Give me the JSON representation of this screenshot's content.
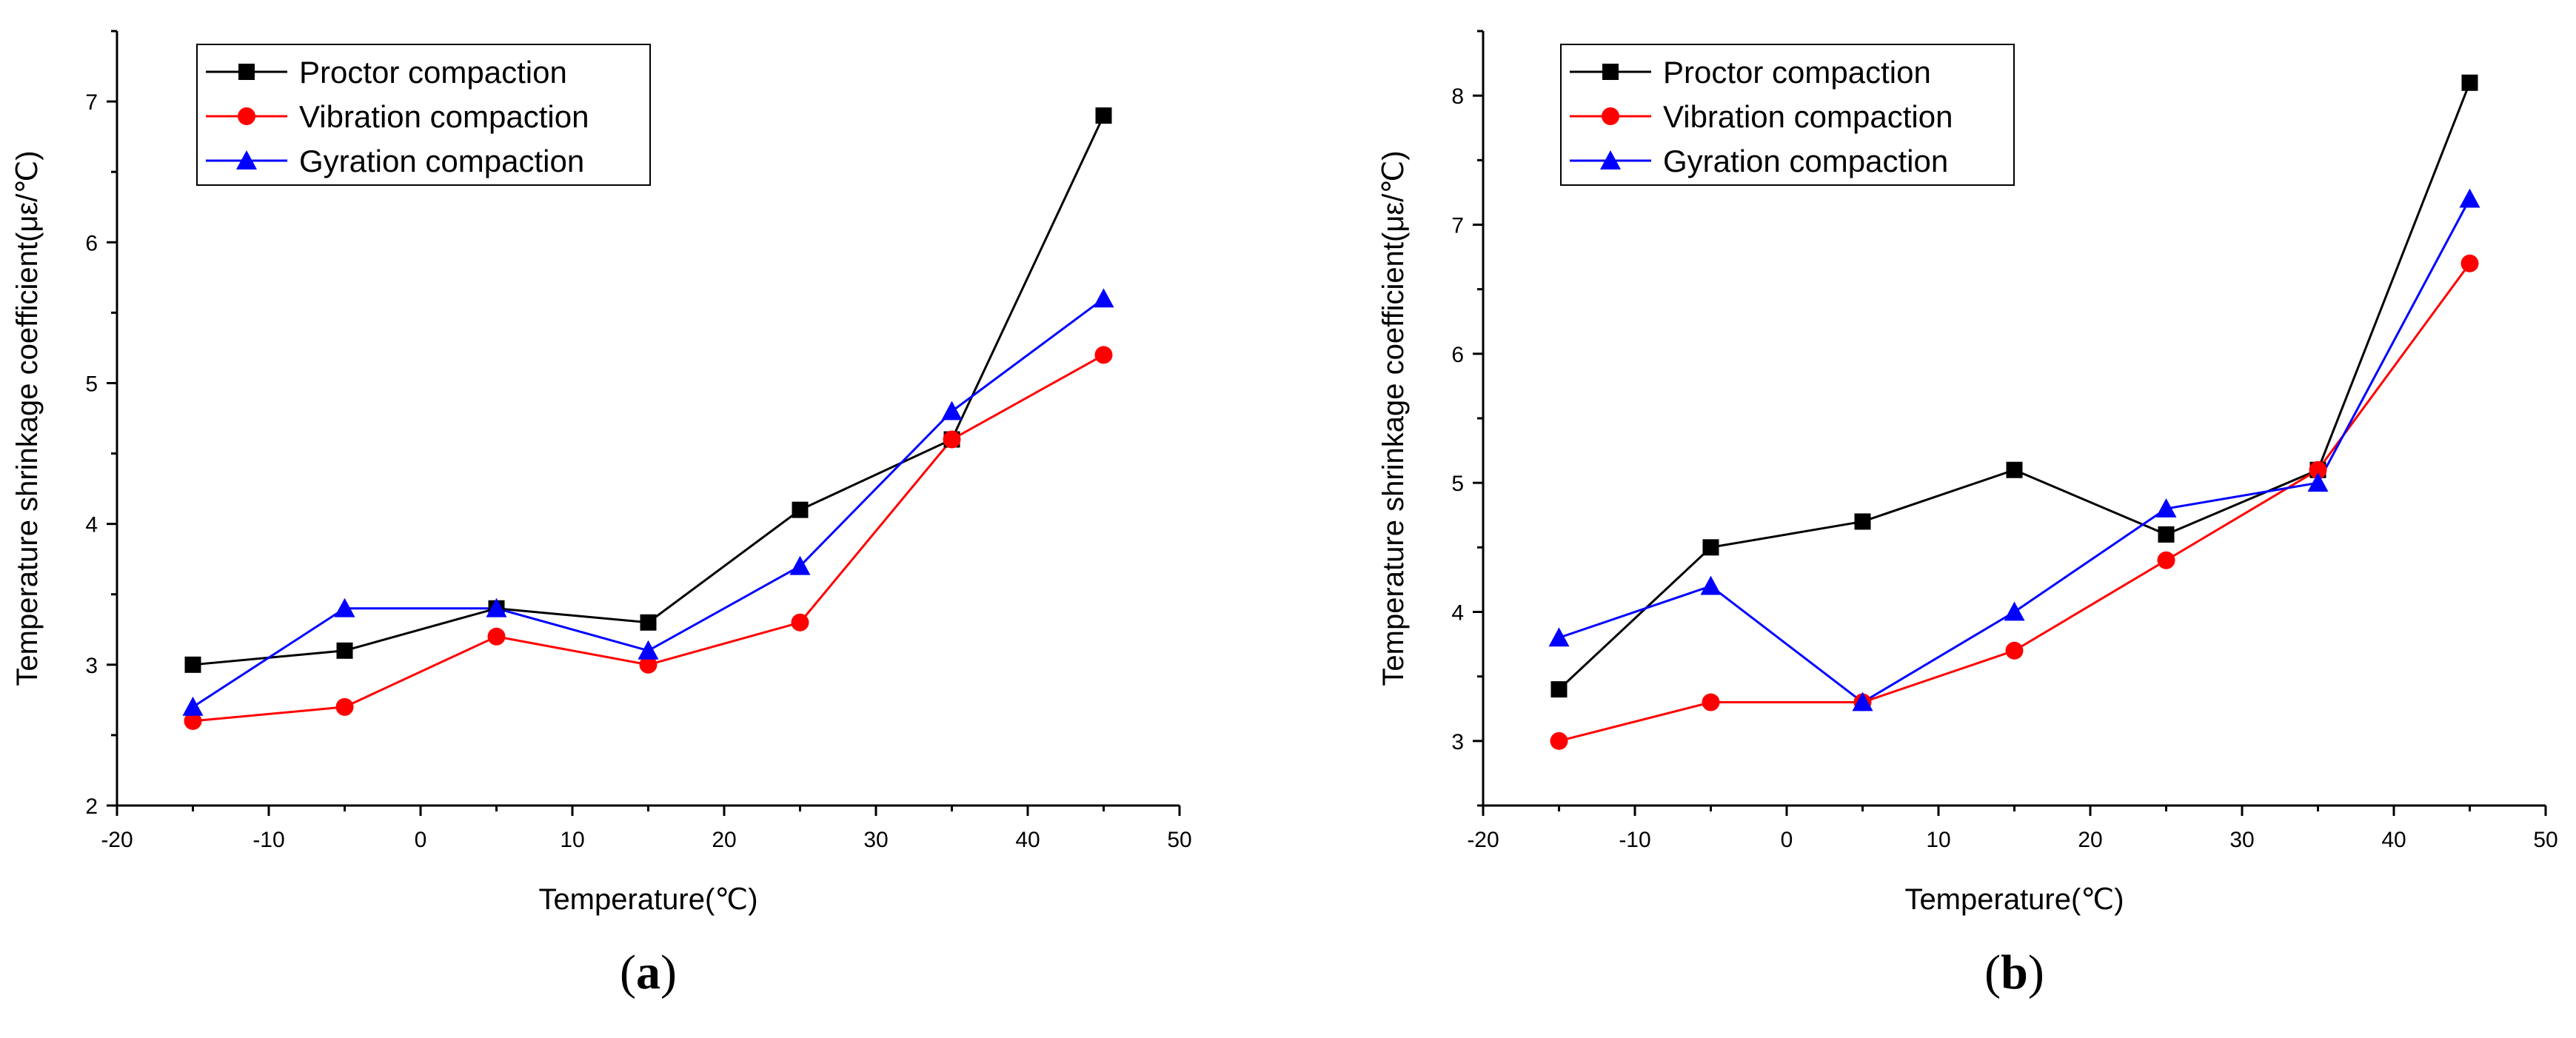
{
  "chart_data": [
    {
      "type": "line",
      "panel_label": "a",
      "xlabel": "Temperature(℃)",
      "ylabel": "Temperature shrinkage coefficient(με/℃)",
      "xlim": [
        -20,
        50
      ],
      "ylim": [
        2,
        7.5
      ],
      "xticks": [
        -20,
        -10,
        0,
        10,
        20,
        30,
        40,
        50
      ],
      "yticks": [
        2,
        3,
        4,
        5,
        6,
        7
      ],
      "legend_position": "top-left",
      "x": [
        -15,
        -5,
        5,
        15,
        25,
        35,
        45
      ],
      "series": [
        {
          "name": "Proctor compaction",
          "color": "#000000",
          "marker": "square",
          "values": [
            3.0,
            3.1,
            3.4,
            3.3,
            4.1,
            4.6,
            6.9
          ]
        },
        {
          "name": "Vibration compaction",
          "color": "#ff0000",
          "marker": "circle",
          "values": [
            2.6,
            2.7,
            3.2,
            3.0,
            3.3,
            4.6,
            5.2
          ]
        },
        {
          "name": "Gyration compaction",
          "color": "#0000ff",
          "marker": "triangle",
          "values": [
            2.7,
            3.4,
            3.4,
            3.1,
            3.7,
            4.8,
            5.6
          ]
        }
      ]
    },
    {
      "type": "line",
      "panel_label": "b",
      "xlabel": "Temperature(℃)",
      "ylabel": "Temperature shrinkage coefficient(με/℃)",
      "xlim": [
        -20,
        50
      ],
      "ylim": [
        2.5,
        8.5
      ],
      "xticks": [
        -20,
        -10,
        0,
        10,
        20,
        30,
        40,
        50
      ],
      "yticks": [
        3,
        4,
        5,
        6,
        7,
        8
      ],
      "legend_position": "top-left",
      "x": [
        -15,
        -5,
        5,
        15,
        25,
        35,
        45
      ],
      "series": [
        {
          "name": "Proctor compaction",
          "color": "#000000",
          "marker": "square",
          "values": [
            3.4,
            4.5,
            4.7,
            5.1,
            4.6,
            5.1,
            8.1
          ]
        },
        {
          "name": "Vibration compaction",
          "color": "#ff0000",
          "marker": "circle",
          "values": [
            3.0,
            3.3,
            3.3,
            3.7,
            4.4,
            5.1,
            6.7
          ]
        },
        {
          "name": "Gyration compaction",
          "color": "#0000ff",
          "marker": "triangle",
          "values": [
            3.8,
            4.2,
            3.3,
            4.0,
            4.8,
            5.0,
            7.2
          ]
        }
      ]
    }
  ]
}
